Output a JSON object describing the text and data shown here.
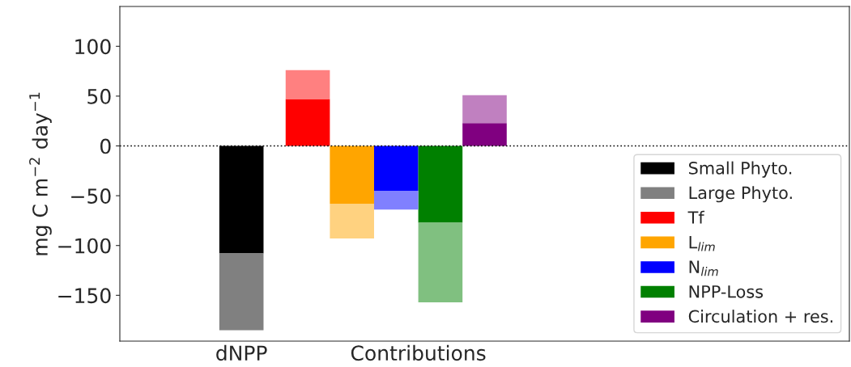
{
  "chart_data": {
    "type": "bar",
    "stacked": true,
    "categories": [
      null,
      null,
      null,
      null,
      null,
      "dNPP",
      null,
      null,
      null,
      null,
      null,
      null,
      null,
      "Contributions",
      null,
      null,
      null,
      null,
      null,
      null,
      null,
      null,
      null,
      null,
      null,
      null,
      null,
      null,
      null,
      null,
      null,
      null,
      null
    ],
    "ylabel": "mg C m$^{−2}$ day$^{−1}$",
    "ylim": [
      -196,
      140
    ],
    "yticks": [
      -150,
      -100,
      -50,
      0,
      50,
      100
    ],
    "series": [
      {
        "name": "Small Phyto.",
        "color": "#000000",
        "values": [
          null,
          null,
          null,
          null,
          null,
          -108,
          null,
          null,
          null,
          null,
          null,
          null,
          null,
          null,
          null,
          null,
          null,
          null,
          null,
          null,
          null,
          null,
          null,
          null,
          null,
          null,
          null,
          null,
          null,
          null,
          null,
          null,
          null
        ]
      },
      {
        "name": "Large Phyto.",
        "color": "#808080",
        "values": [
          null,
          null,
          null,
          null,
          null,
          -77,
          null,
          null,
          null,
          null,
          null,
          null,
          null,
          null,
          null,
          null,
          null,
          null,
          null,
          null,
          null,
          null,
          null,
          null,
          null,
          null,
          null,
          null,
          null,
          null,
          null,
          null,
          null
        ]
      },
      {
        "name": "Tf",
        "color": "#ff0000",
        "values": [
          null,
          null,
          null,
          null,
          null,
          null,
          null,
          null,
          47,
          null,
          null,
          null,
          null,
          null,
          null,
          null,
          null,
          null,
          null,
          null,
          null,
          null,
          null,
          null,
          null,
          null,
          null,
          null,
          null,
          null,
          null,
          null,
          null
        ]
      },
      {
        "name": "L$_{lim}$",
        "color": "#ffa500",
        "values": [
          null,
          null,
          null,
          null,
          null,
          null,
          null,
          null,
          null,
          null,
          -58,
          null,
          null,
          null,
          null,
          null,
          null,
          null,
          null,
          null,
          null,
          null,
          null,
          null,
          null,
          null,
          null,
          null,
          null,
          null,
          null,
          null,
          null
        ]
      },
      {
        "name": "N$_{lim}$",
        "color": "#0000ff",
        "values": [
          null,
          null,
          null,
          null,
          null,
          null,
          null,
          null,
          null,
          null,
          null,
          null,
          -45,
          null,
          null,
          null,
          null,
          null,
          null,
          null,
          null,
          null,
          null,
          null,
          null,
          null,
          null,
          null,
          null,
          null,
          null,
          null,
          null
        ]
      },
      {
        "name": "NPP-Loss",
        "color": "#008000",
        "values": [
          null,
          null,
          null,
          null,
          null,
          null,
          null,
          null,
          null,
          null,
          null,
          null,
          null,
          null,
          -77,
          null,
          null,
          null,
          null,
          null,
          null,
          null,
          null,
          null,
          null,
          null,
          null,
          null,
          null,
          null,
          null,
          null,
          null
        ]
      },
      {
        "name": "Circulation + res.",
        "color": "#800080",
        "values": [
          null,
          null,
          null,
          null,
          null,
          null,
          null,
          null,
          null,
          null,
          null,
          null,
          null,
          null,
          null,
          null,
          23,
          null,
          null,
          null,
          null,
          null,
          null,
          null,
          null,
          null,
          null,
          null,
          null,
          null,
          null,
          null,
          null
        ]
      },
      {
        "colors": [
          null,
          null,
          null,
          null,
          null,
          null,
          null,
          null,
          "#ff8080",
          null,
          "#ffd280",
          null,
          "#8080ff",
          null,
          "#80c080",
          null,
          "#c080c0",
          null,
          null,
          null,
          null,
          null,
          null,
          null,
          null,
          null,
          null,
          null,
          null,
          null,
          null,
          null,
          null
        ],
        "values": [
          null,
          null,
          null,
          null,
          null,
          null,
          null,
          null,
          29,
          null,
          -35,
          null,
          -19,
          null,
          -80,
          null,
          28,
          null,
          null,
          null,
          null,
          null,
          null,
          null,
          null,
          null,
          null,
          null,
          null,
          null,
          null,
          null,
          null
        ]
      }
    ],
    "ref_lines": [
      {
        "axis": "y",
        "value": 0,
        "color": "#000000",
        "line_style": "dotted"
      }
    ],
    "legend": "bottom right",
    "grid": false
  }
}
